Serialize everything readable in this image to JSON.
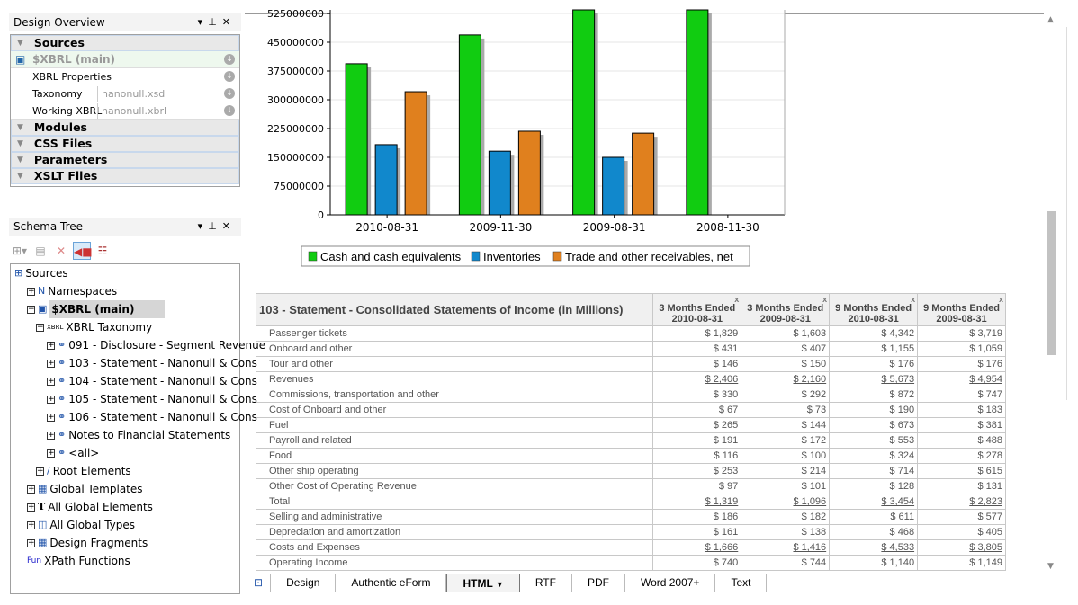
{
  "design_overview": {
    "title": "Design Overview",
    "sections": [
      "Sources",
      "Modules",
      "CSS Files",
      "Parameters",
      "XSLT Files"
    ],
    "source_main": "$XBRL (main)",
    "xbrl_properties": "XBRL Properties",
    "taxonomy_label": "Taxonomy",
    "taxonomy_value": "nanonull.xsd",
    "working_label": "Working XBRL",
    "working_value": "nanonull.xbrl"
  },
  "schema_tree": {
    "title": "Schema Tree",
    "nodes": [
      "Sources",
      "Namespaces",
      "$XBRL (main)",
      "XBRL Taxonomy",
      "091 - Disclosure - Segment Revenue",
      "103 - Statement - Nanonull & Cons",
      "104 - Statement - Nanonull & Cons",
      "105 - Statement - Nanonull & Cons",
      "106 - Statement - Nanonull & Cons",
      "Notes to Financial Statements",
      "<all>",
      "Root Elements",
      "Global Templates",
      "All Global Elements",
      "All Global Types",
      "Design Fragments",
      "XPath Functions"
    ],
    "xbrl_tag": "XBRL",
    "fun_tag": "Fun"
  },
  "chart_data": {
    "type": "bar",
    "categories": [
      "2010-08-31",
      "2009-11-30",
      "2009-08-31",
      "2008-11-30"
    ],
    "series": [
      {
        "name": "Cash and cash equivalents",
        "color": "#11cc11",
        "values": [
          394000000,
          469000000,
          560000000,
          560000000
        ]
      },
      {
        "name": "Inventories",
        "color": "#1188cc",
        "values": [
          183000000,
          166000000,
          150000000,
          0
        ]
      },
      {
        "name": "Trade and other receivables, net",
        "color": "#e0801e",
        "values": [
          321000000,
          218000000,
          213000000,
          0
        ]
      }
    ],
    "yticks": [
      0,
      75000000,
      150000000,
      225000000,
      300000000,
      375000000,
      450000000,
      525000000
    ],
    "ylim": [
      0,
      525000000
    ],
    "grid": true,
    "legend": "bottom"
  },
  "table": {
    "title": "103 - Statement - Consolidated Statements of Income (in Millions)",
    "columns": [
      [
        "3 Months Ended",
        "2010-08-31"
      ],
      [
        "3 Months Ended",
        "2009-08-31"
      ],
      [
        "9 Months Ended",
        "2010-08-31"
      ],
      [
        "9 Months Ended",
        "2009-08-31"
      ]
    ],
    "close": "x",
    "rows": [
      {
        "label": "Passenger tickets",
        "v": [
          "$ 1,829",
          "$ 1,603",
          "$ 4,342",
          "$ 3,719"
        ]
      },
      {
        "label": "Onboard and other",
        "v": [
          "$ 431",
          "$ 407",
          "$ 1,155",
          "$ 1,059"
        ]
      },
      {
        "label": "Tour and other",
        "v": [
          "$ 146",
          "$ 150",
          "$ 176",
          "$ 176"
        ]
      },
      {
        "label": "Revenues",
        "v": [
          "$ 2,406",
          "$ 2,160",
          "$ 5,673",
          "$ 4,954"
        ],
        "u": true
      },
      {
        "label": "Commissions, transportation and other",
        "v": [
          "$ 330",
          "$ 292",
          "$ 872",
          "$ 747"
        ]
      },
      {
        "label": "Cost of Onboard and other",
        "v": [
          "$ 67",
          "$ 73",
          "$ 190",
          "$ 183"
        ]
      },
      {
        "label": "Fuel",
        "v": [
          "$ 265",
          "$ 144",
          "$ 673",
          "$ 381"
        ]
      },
      {
        "label": "Payroll and related",
        "v": [
          "$ 191",
          "$ 172",
          "$ 553",
          "$ 488"
        ]
      },
      {
        "label": "Food",
        "v": [
          "$ 116",
          "$ 100",
          "$ 324",
          "$ 278"
        ]
      },
      {
        "label": "Other ship operating",
        "v": [
          "$ 253",
          "$ 214",
          "$ 714",
          "$ 615"
        ]
      },
      {
        "label": "Other Cost of Operating Revenue",
        "v": [
          "$ 97",
          "$ 101",
          "$ 128",
          "$ 131"
        ]
      },
      {
        "label": "Total",
        "v": [
          "$ 1,319",
          "$ 1,096",
          "$ 3,454",
          "$ 2,823"
        ],
        "u": true
      },
      {
        "label": "Selling and administrative",
        "v": [
          "$ 186",
          "$ 182",
          "$ 611",
          "$ 577"
        ]
      },
      {
        "label": "Depreciation and amortization",
        "v": [
          "$ 161",
          "$ 138",
          "$ 468",
          "$ 405"
        ]
      },
      {
        "label": "Costs and Expenses",
        "v": [
          "$ 1,666",
          "$ 1,416",
          "$ 4,533",
          "$ 3,805"
        ],
        "u": true
      },
      {
        "label": "Operating Income",
        "v": [
          "$ 740",
          "$ 744",
          "$ 1,140",
          "$ 1,149"
        ]
      }
    ]
  },
  "tabs": [
    "Design",
    "Authentic eForm",
    "HTML",
    "RTF",
    "PDF",
    "Word 2007+",
    "Text"
  ],
  "active_tab": "HTML"
}
